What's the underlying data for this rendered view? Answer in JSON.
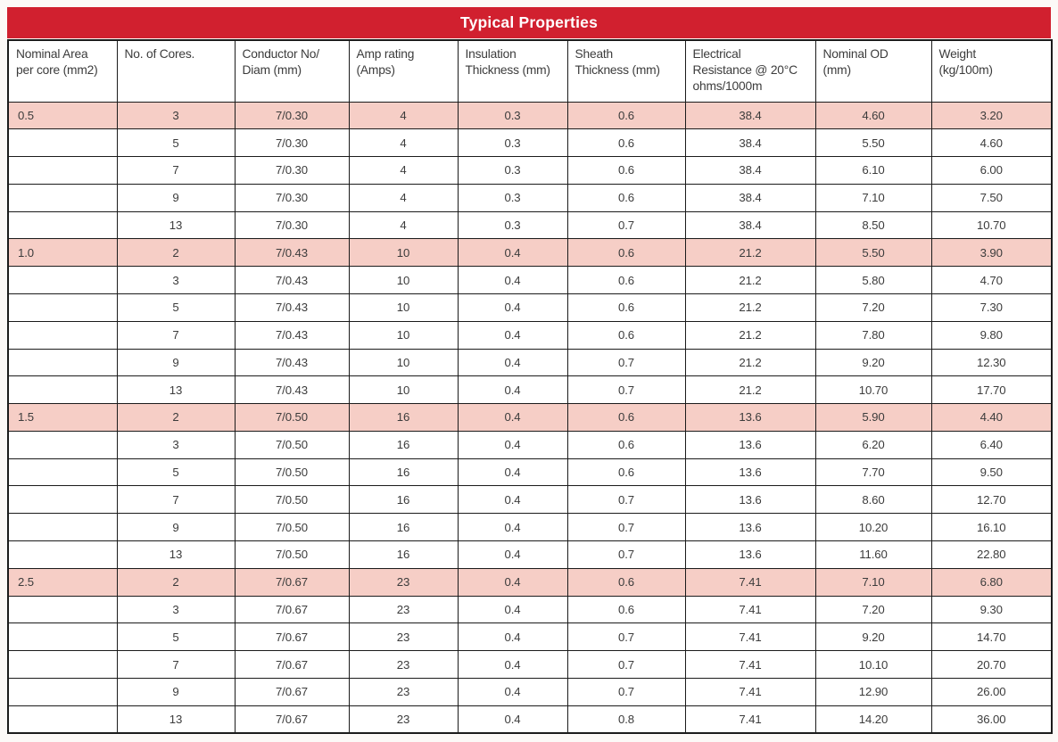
{
  "title": "Typical Properties",
  "colors": {
    "title_bar": "#D1202F",
    "title_text": "#FFFFFF",
    "highlight_row": "#F6CEC6",
    "border": "#1B1B1B",
    "cell_text": "#3C3C3C"
  },
  "table": {
    "columns": [
      "Nominal Area\nper core (mm2)",
      "No. of Cores.",
      "Conductor No/\nDiam (mm)",
      "Amp rating\n(Amps)",
      "Insulation\nThickness (mm)",
      "Sheath\nThickness (mm)",
      "Electrical\nResistance @ 20°C\nohms/1000m",
      "Nominal OD\n(mm)",
      "Weight\n(kg/100m)"
    ],
    "rows": [
      {
        "highlight": true,
        "cells": [
          "0.5",
          "3",
          "7/0.30",
          "4",
          "0.3",
          "0.6",
          "38.4",
          "4.60",
          "3.20"
        ]
      },
      {
        "highlight": false,
        "cells": [
          "",
          "5",
          "7/0.30",
          "4",
          "0.3",
          "0.6",
          "38.4",
          "5.50",
          "4.60"
        ]
      },
      {
        "highlight": false,
        "cells": [
          "",
          "7",
          "7/0.30",
          "4",
          "0.3",
          "0.6",
          "38.4",
          "6.10",
          "6.00"
        ]
      },
      {
        "highlight": false,
        "cells": [
          "",
          "9",
          "7/0.30",
          "4",
          "0.3",
          "0.6",
          "38.4",
          "7.10",
          "7.50"
        ]
      },
      {
        "highlight": false,
        "cells": [
          "",
          "13",
          "7/0.30",
          "4",
          "0.3",
          "0.7",
          "38.4",
          "8.50",
          "10.70"
        ]
      },
      {
        "highlight": true,
        "cells": [
          "1.0",
          "2",
          "7/0.43",
          "10",
          "0.4",
          "0.6",
          "21.2",
          "5.50",
          "3.90"
        ]
      },
      {
        "highlight": false,
        "cells": [
          "",
          "3",
          "7/0.43",
          "10",
          "0.4",
          "0.6",
          "21.2",
          "5.80",
          "4.70"
        ]
      },
      {
        "highlight": false,
        "cells": [
          "",
          "5",
          "7/0.43",
          "10",
          "0.4",
          "0.6",
          "21.2",
          "7.20",
          "7.30"
        ]
      },
      {
        "highlight": false,
        "cells": [
          "",
          "7",
          "7/0.43",
          "10",
          "0.4",
          "0.6",
          "21.2",
          "7.80",
          "9.80"
        ]
      },
      {
        "highlight": false,
        "cells": [
          "",
          "9",
          "7/0.43",
          "10",
          "0.4",
          "0.7",
          "21.2",
          "9.20",
          "12.30"
        ]
      },
      {
        "highlight": false,
        "cells": [
          "",
          "13",
          "7/0.43",
          "10",
          "0.4",
          "0.7",
          "21.2",
          "10.70",
          "17.70"
        ]
      },
      {
        "highlight": true,
        "cells": [
          "1.5",
          "2",
          "7/0.50",
          "16",
          "0.4",
          "0.6",
          "13.6",
          "5.90",
          "4.40"
        ]
      },
      {
        "highlight": false,
        "cells": [
          "",
          "3",
          "7/0.50",
          "16",
          "0.4",
          "0.6",
          "13.6",
          "6.20",
          "6.40"
        ]
      },
      {
        "highlight": false,
        "cells": [
          "",
          "5",
          "7/0.50",
          "16",
          "0.4",
          "0.6",
          "13.6",
          "7.70",
          "9.50"
        ]
      },
      {
        "highlight": false,
        "cells": [
          "",
          "7",
          "7/0.50",
          "16",
          "0.4",
          "0.7",
          "13.6",
          "8.60",
          "12.70"
        ]
      },
      {
        "highlight": false,
        "cells": [
          "",
          "9",
          "7/0.50",
          "16",
          "0.4",
          "0.7",
          "13.6",
          "10.20",
          "16.10"
        ]
      },
      {
        "highlight": false,
        "cells": [
          "",
          "13",
          "7/0.50",
          "16",
          "0.4",
          "0.7",
          "13.6",
          "11.60",
          "22.80"
        ]
      },
      {
        "highlight": true,
        "cells": [
          "2.5",
          "2",
          "7/0.67",
          "23",
          "0.4",
          "0.6",
          "7.41",
          "7.10",
          "6.80"
        ]
      },
      {
        "highlight": false,
        "cells": [
          "",
          "3",
          "7/0.67",
          "23",
          "0.4",
          "0.6",
          "7.41",
          "7.20",
          "9.30"
        ]
      },
      {
        "highlight": false,
        "cells": [
          "",
          "5",
          "7/0.67",
          "23",
          "0.4",
          "0.7",
          "7.41",
          "9.20",
          "14.70"
        ]
      },
      {
        "highlight": false,
        "cells": [
          "",
          "7",
          "7/0.67",
          "23",
          "0.4",
          "0.7",
          "7.41",
          "10.10",
          "20.70"
        ]
      },
      {
        "highlight": false,
        "cells": [
          "",
          "9",
          "7/0.67",
          "23",
          "0.4",
          "0.7",
          "7.41",
          "12.90",
          "26.00"
        ]
      },
      {
        "highlight": false,
        "cells": [
          "",
          "13",
          "7/0.67",
          "23",
          "0.4",
          "0.8",
          "7.41",
          "14.20",
          "36.00"
        ]
      }
    ]
  }
}
